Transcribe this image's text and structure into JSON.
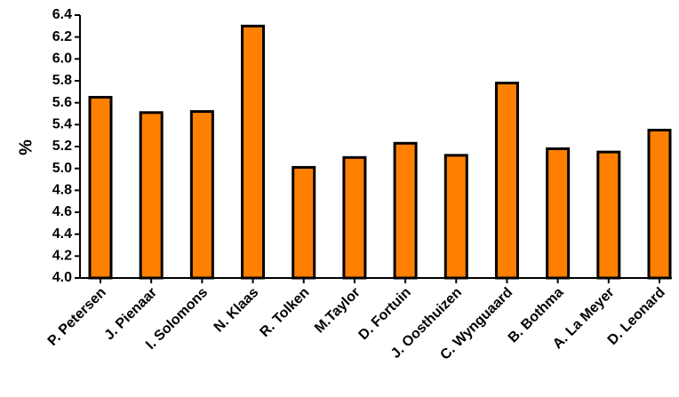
{
  "chart_data": {
    "type": "bar",
    "ylabel": "%",
    "xlabel": "",
    "title": "",
    "ylim": [
      4.0,
      6.4
    ],
    "yticks": [
      4.0,
      4.2,
      4.4,
      4.6,
      4.8,
      5.0,
      5.2,
      5.4,
      5.6,
      5.8,
      6.0,
      6.2,
      6.4
    ],
    "categories": [
      "P. Petersen",
      "J. Pienaar",
      "I. Solomons",
      "N. Klaas",
      "R. Tolken",
      "M.Taylor",
      "D. Fortuin",
      "J. Oosthuizen",
      "C. Wynguaard",
      "B. Bothma",
      "A. La Meyer",
      "D. Leonard"
    ],
    "values": [
      5.65,
      5.51,
      5.52,
      6.3,
      5.01,
      5.1,
      5.23,
      5.12,
      5.78,
      5.18,
      5.15,
      5.35
    ],
    "bar_color": "#ff8000",
    "bar_edge_color": "#000000",
    "grid": false
  }
}
